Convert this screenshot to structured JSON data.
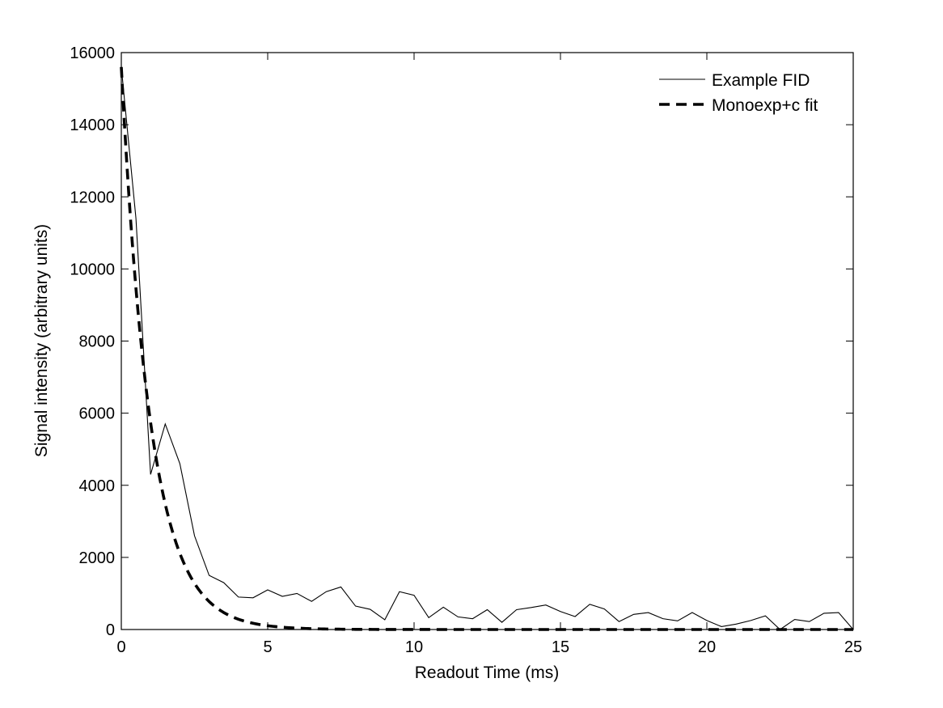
{
  "chart_data": {
    "type": "line",
    "xlabel": "Readout Time (ms)",
    "ylabel": "Signal intensity (arbitrary units)",
    "xlim": [
      0,
      25
    ],
    "ylim": [
      0,
      16000
    ],
    "xticks": [
      0,
      5,
      10,
      15,
      20,
      25
    ],
    "yticks": [
      0,
      2000,
      4000,
      6000,
      8000,
      10000,
      12000,
      14000,
      16000
    ],
    "grid": false,
    "legend_position": "top-right",
    "series": [
      {
        "name": "Example FID",
        "style": "solid-thin",
        "x": [
          0,
          0.5,
          1,
          1.5,
          2,
          2.5,
          3,
          3.5,
          4,
          4.5,
          5,
          5.5,
          6,
          6.5,
          7,
          7.5,
          8,
          8.5,
          9,
          9.5,
          10,
          10.5,
          11,
          11.5,
          12,
          12.5,
          13,
          13.5,
          14,
          14.5,
          15,
          15.5,
          16,
          16.5,
          17,
          17.5,
          18,
          18.5,
          19,
          19.5,
          20,
          20.5,
          21,
          21.5,
          22,
          22.5,
          23,
          23.5,
          24,
          24.5,
          25
        ],
        "values": [
          15600,
          11400,
          4300,
          5700,
          4600,
          2600,
          1500,
          1300,
          900,
          880,
          1100,
          920,
          1000,
          780,
          1050,
          1180,
          650,
          560,
          270,
          1050,
          950,
          330,
          620,
          350,
          300,
          550,
          200,
          550,
          610,
          680,
          500,
          360,
          700,
          570,
          220,
          420,
          470,
          300,
          240,
          470,
          250,
          80,
          150,
          250,
          380,
          0,
          280,
          220,
          450,
          470,
          0
        ]
      },
      {
        "name": "Monoexp+c fit",
        "style": "dashed-thick",
        "equation": {
          "a": 15600,
          "tau": 1.0,
          "c": 0
        }
      }
    ]
  }
}
